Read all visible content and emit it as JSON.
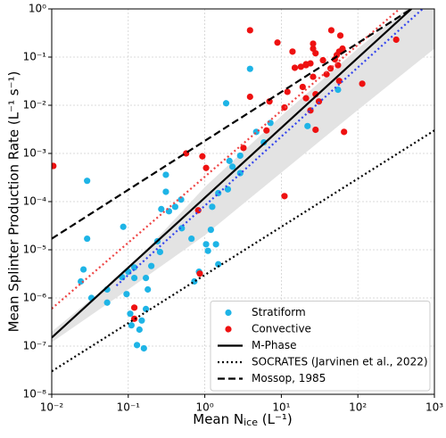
{
  "chart_data": {
    "type": "scatter",
    "xlabel": [
      "Mean N",
      "ice",
      " (L⁻¹)"
    ],
    "ylabel": "Mean Splinter Production Rate (L⁻¹ s⁻¹)",
    "log_x": true,
    "log_y": true,
    "grid": true,
    "legend": "lower right",
    "xlim": [
      0.01,
      1000
    ],
    "ylim": [
      1e-08,
      1
    ],
    "xticks": [
      {
        "value": 0.01,
        "label": "10⁻²"
      },
      {
        "value": 0.1,
        "label": "10⁻¹"
      },
      {
        "value": 1,
        "label": "10⁰"
      },
      {
        "value": 10,
        "label": "10¹"
      },
      {
        "value": 100,
        "label": "10²"
      },
      {
        "value": 1000,
        "label": "10³"
      }
    ],
    "yticks": [
      {
        "value": 1e-08,
        "label": "10⁻⁸"
      },
      {
        "value": 1e-07,
        "label": "10⁻⁷"
      },
      {
        "value": 1e-06,
        "label": "10⁻⁶"
      },
      {
        "value": 1e-05,
        "label": "10⁻⁵"
      },
      {
        "value": 0.0001,
        "label": "10⁻⁴"
      },
      {
        "value": 0.001,
        "label": "10⁻³"
      },
      {
        "value": 0.01,
        "label": "10⁻²"
      },
      {
        "value": 0.1,
        "label": "10⁻¹"
      },
      {
        "value": 1,
        "label": "10⁰"
      }
    ],
    "band": {
      "color": "#e3e3e3",
      "x": [
        0.01,
        0.1,
        1,
        10,
        100,
        1000
      ],
      "lower": [
        1.2e-07,
        1.5e-06,
        2e-05,
        0.0004,
        0.008,
        0.15
      ],
      "upper": [
        2e-07,
        4e-06,
        0.0002,
        0.006,
        0.15,
        3
      ]
    },
    "series": [
      {
        "name": "Stratiform",
        "color": "#1eb4e6",
        "style": "points",
        "x": [
          0.029,
          0.029,
          0.086,
          0.026,
          0.024,
          0.033,
          0.053,
          0.053,
          0.083,
          0.1,
          0.12,
          0.12,
          0.095,
          0.106,
          0.11,
          0.15,
          0.14,
          0.13,
          0.16,
          0.17,
          0.18,
          0.17,
          0.2,
          0.24,
          0.26,
          0.31,
          0.31,
          0.27,
          0.34,
          0.41,
          0.5,
          0.49,
          0.67,
          0.73,
          0.84,
          1.04,
          1.1,
          1.5,
          1.4,
          1.2,
          1.25,
          1.5,
          2.0,
          2.3,
          2.1,
          2.9,
          2.9,
          1.9,
          3.9,
          5.9,
          7.2,
          22,
          55,
          4.7
        ],
        "values": [
          0.00027,
          1.7e-05,
          3e-05,
          3.9e-06,
          2.2e-06,
          1e-06,
          1.5e-06,
          8e-07,
          2.7e-06,
          3.5e-06,
          4.3e-06,
          2.6e-06,
          1.2e-06,
          4.7e-07,
          2.7e-07,
          3.4e-07,
          2.2e-07,
          1.05e-07,
          9e-08,
          5.9e-07,
          1.5e-06,
          2.6e-06,
          4.6e-06,
          1.5e-05,
          9e-06,
          0.00036,
          0.00016,
          7e-05,
          6.3e-05,
          7.8e-05,
          2.8e-05,
          0.00011,
          1.7e-05,
          2.2e-06,
          3.5e-06,
          1.3e-05,
          9.5e-06,
          5e-06,
          1.3e-05,
          2.6e-05,
          7.8e-05,
          0.00015,
          0.00018,
          0.00053,
          0.0007,
          0.0009,
          0.00039,
          0.011,
          0.057,
          0.0017,
          0.0043,
          0.0037,
          0.021,
          0.0028
        ]
      },
      {
        "name": "Convective",
        "color": "#ee1111",
        "style": "points",
        "x": [
          0.0105,
          0.57,
          0.93,
          1.04,
          0.82,
          0.86,
          0.12,
          0.12,
          3.2,
          3.9,
          3.9,
          7,
          6.4,
          11,
          11,
          8.9,
          12,
          14,
          15,
          19,
          18,
          21,
          24,
          26,
          26,
          28,
          21,
          24,
          31,
          28,
          35,
          39,
          44,
          45,
          53,
          55,
          57,
          57,
          63,
          59,
          66,
          21,
          26,
          114,
          50,
          317,
          28
        ],
        "values": [
          0.00055,
          0.001,
          0.00087,
          0.0005,
          6.6e-05,
          3.2e-06,
          6.3e-07,
          3.7e-07,
          0.0013,
          0.015,
          0.36,
          0.012,
          0.003,
          0.009,
          0.00013,
          0.2,
          0.019,
          0.13,
          0.06,
          0.024,
          0.063,
          0.071,
          0.074,
          0.15,
          0.19,
          0.12,
          0.014,
          0.0078,
          0.012,
          0.0031,
          0.086,
          0.044,
          0.058,
          0.36,
          0.11,
          0.068,
          0.032,
          0.13,
          0.15,
          0.28,
          0.0028,
          0.068,
          0.039,
          0.028,
          0.09,
          0.23,
          0.017
        ]
      },
      {
        "color": "#ee4444",
        "style": "dotted",
        "x": [
          0.01,
          350
        ],
        "values": [
          6e-07,
          1
        ]
      },
      {
        "color": "#3344ee",
        "style": "dotted",
        "x": [
          0.07,
          700
        ],
        "values": [
          1.8e-06,
          1
        ]
      },
      {
        "name": "M-Phase",
        "color": "#000000",
        "style": "solid",
        "x": [
          0.01,
          500
        ],
        "values": [
          1.5e-07,
          1
        ]
      },
      {
        "name": "SOCRATES (Jarvinen et al., 2022)",
        "color": "#000000",
        "style": "dotted",
        "x": [
          0.01,
          1000
        ],
        "values": [
          3e-08,
          0.003
        ]
      },
      {
        "name": "Mossop, 1985",
        "color": "#000000",
        "style": "dashed",
        "x": [
          0.01,
          500
        ],
        "values": [
          1.7e-05,
          1
        ]
      }
    ]
  }
}
